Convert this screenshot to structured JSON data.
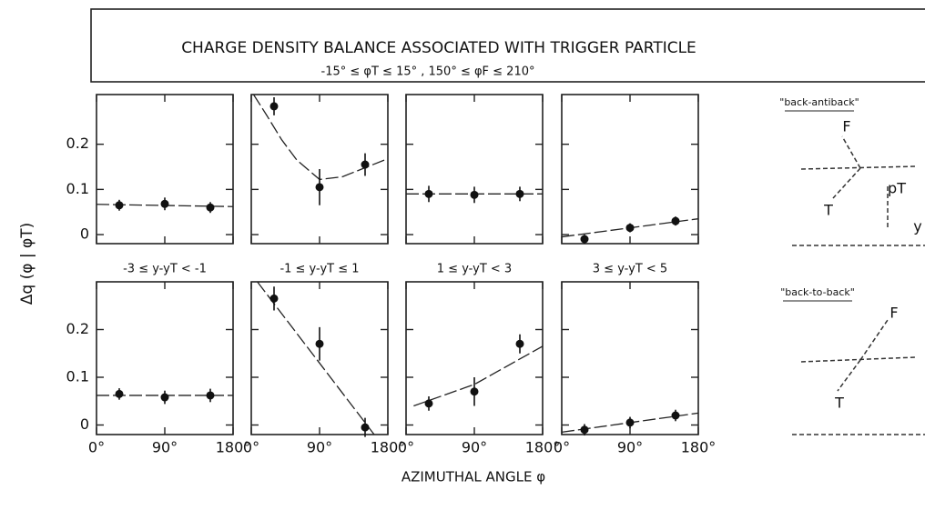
{
  "title": "CHARGE DENSITY BALANCE ASSOCIATED WITH TRIGGER PARTICLE",
  "subtitle": "-15° ≤ φT ≤ 15° ,     150° ≤ φF ≤ 210°",
  "y_label": "Δq (φ | φT)",
  "x_label": "AZIMUTHAL ANGLE φ",
  "column_labels": [
    "-3 ≤ y-yT < -1",
    "-1 ≤ y-yT ≤ 1",
    "1 ≤ y-yT < 3",
    "3 ≤ y-yT < 5"
  ],
  "diagrams": [
    {
      "title": "\"back-antiback\"",
      "labels": [
        "F",
        "T",
        "pT",
        "y"
      ]
    },
    {
      "title": "\"back-to-back\"",
      "labels": [
        "F",
        "T"
      ]
    }
  ],
  "chart_data": [
    {
      "type": "scatter",
      "x": [
        30,
        90,
        150
      ],
      "values": [
        0.065,
        0.068,
        0.06
      ],
      "errors": [
        0.012,
        0.014,
        0.012
      ],
      "fit": {
        "x": [
          0,
          180
        ],
        "values": [
          0.067,
          0.062
        ]
      },
      "xlim": [
        0,
        180
      ],
      "ylim": [
        -0.02,
        0.31
      ],
      "xticks": [
        0,
        90,
        180
      ],
      "yticks": [
        0,
        0.1,
        0.2
      ]
    },
    {
      "type": "scatter",
      "x": [
        30,
        90,
        150
      ],
      "values": [
        0.284,
        0.105,
        0.155
      ],
      "errors": [
        0.02,
        0.04,
        0.025
      ],
      "fit": {
        "x": [
          3,
          20,
          40,
          60,
          90,
          120,
          150,
          180
        ],
        "values": [
          0.31,
          0.265,
          0.21,
          0.165,
          0.122,
          0.128,
          0.148,
          0.168
        ]
      },
      "xlim": [
        0,
        180
      ],
      "ylim": [
        -0.02,
        0.31
      ],
      "xticks": [
        0,
        90,
        180
      ],
      "yticks": [
        0,
        0.1,
        0.2
      ]
    },
    {
      "type": "scatter",
      "x": [
        30,
        90,
        150
      ],
      "values": [
        0.09,
        0.088,
        0.09
      ],
      "errors": [
        0.018,
        0.018,
        0.016
      ],
      "fit": {
        "x": [
          0,
          180
        ],
        "values": [
          0.09,
          0.09
        ]
      },
      "xlim": [
        0,
        180
      ],
      "ylim": [
        -0.02,
        0.31
      ],
      "xticks": [
        0,
        90,
        180
      ],
      "yticks": [
        0,
        0.1,
        0.2
      ]
    },
    {
      "type": "scatter",
      "x": [
        30,
        90,
        150
      ],
      "values": [
        -0.01,
        0.015,
        0.03
      ],
      "errors": [
        0.01,
        0.01,
        0.01
      ],
      "fit": {
        "x": [
          0,
          180
        ],
        "values": [
          -0.005,
          0.035
        ]
      },
      "xlim": [
        0,
        180
      ],
      "ylim": [
        -0.02,
        0.31
      ],
      "xticks": [
        0,
        90,
        180
      ],
      "yticks": [
        0,
        0.1,
        0.2
      ]
    },
    {
      "type": "scatter",
      "x": [
        30,
        90,
        150
      ],
      "values": [
        0.065,
        0.058,
        0.062
      ],
      "errors": [
        0.012,
        0.014,
        0.014
      ],
      "fit": {
        "x": [
          0,
          180
        ],
        "values": [
          0.062,
          0.062
        ]
      },
      "xlim": [
        0,
        180
      ],
      "ylim": [
        -0.02,
        0.3
      ],
      "xticks": [
        {
          "value": 0,
          "label": "0°"
        },
        {
          "value": 90,
          "label": "90°"
        },
        {
          "value": 180,
          "label": "180°"
        }
      ],
      "yticks": [
        0,
        0.1,
        0.2
      ]
    },
    {
      "type": "scatter",
      "x": [
        30,
        90,
        150
      ],
      "values": [
        0.265,
        0.17,
        -0.005
      ],
      "errors": [
        0.025,
        0.035,
        0.02
      ],
      "fit": {
        "x": [
          8,
          162
        ],
        "values": [
          0.3,
          -0.02
        ]
      },
      "xlim": [
        0,
        180
      ],
      "ylim": [
        -0.02,
        0.3
      ],
      "xticks": [
        {
          "value": 0,
          "label": "0°"
        },
        {
          "value": 90,
          "label": "90°"
        },
        {
          "value": 180,
          "label": "180°"
        }
      ],
      "yticks": [
        0,
        0.1,
        0.2
      ]
    },
    {
      "type": "scatter",
      "x": [
        30,
        90,
        150
      ],
      "values": [
        0.045,
        0.07,
        0.17
      ],
      "errors": [
        0.015,
        0.03,
        0.02
      ],
      "fit": {
        "x": [
          10,
          90,
          180
        ],
        "values": [
          0.04,
          0.085,
          0.165
        ]
      },
      "xlim": [
        0,
        180
      ],
      "ylim": [
        -0.02,
        0.3
      ],
      "xticks": [
        {
          "value": 0,
          "label": "0°"
        },
        {
          "value": 90,
          "label": "90°"
        },
        {
          "value": 180,
          "label": "180°"
        }
      ],
      "yticks": [
        0,
        0.1,
        0.2
      ]
    },
    {
      "type": "scatter",
      "x": [
        30,
        90,
        150
      ],
      "values": [
        -0.01,
        0.005,
        0.02
      ],
      "errors": [
        0.012,
        0.012,
        0.012
      ],
      "fit": {
        "x": [
          0,
          180
        ],
        "values": [
          -0.015,
          0.025
        ]
      },
      "xlim": [
        0,
        180
      ],
      "ylim": [
        -0.02,
        0.3
      ],
      "xticks": [
        {
          "value": 0,
          "label": "0°"
        },
        {
          "value": 90,
          "label": "90°"
        },
        {
          "value": 180,
          "label": "180°"
        }
      ],
      "yticks": [
        0,
        0.1,
        0.2
      ]
    }
  ]
}
